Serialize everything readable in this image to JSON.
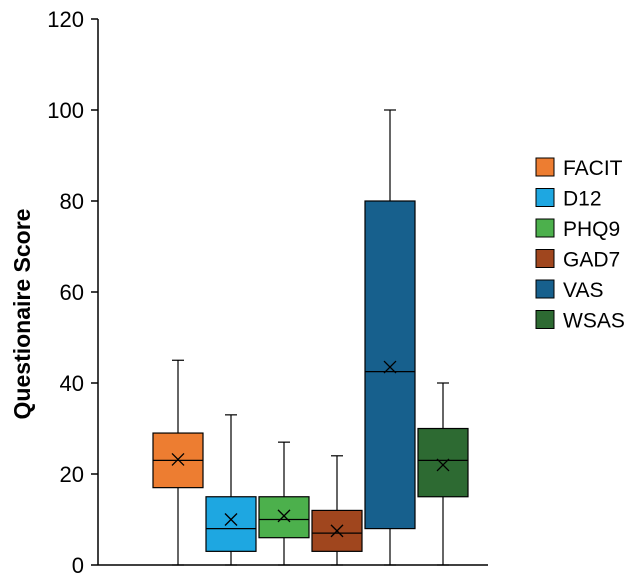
{
  "chart_data": {
    "type": "boxplot",
    "title": "",
    "xlabel": "",
    "ylabel": "Questionaire Score",
    "ylim": [
      0,
      120
    ],
    "yticks": [
      0,
      20,
      40,
      60,
      80,
      100,
      120
    ],
    "legend_position": "right",
    "series": [
      {
        "name": "FACIT",
        "color": "#ED7D31",
        "min": 0,
        "q1": 17,
        "median": 23,
        "q3": 29,
        "max": 45,
        "mean": 23.2
      },
      {
        "name": "D12",
        "color": "#1EA7E1",
        "min": 0,
        "q1": 3,
        "median": 8,
        "q3": 15,
        "max": 33,
        "mean": 10
      },
      {
        "name": "PHQ9",
        "color": "#4CB04C",
        "min": 0,
        "q1": 6,
        "median": 10,
        "q3": 15,
        "max": 27,
        "mean": 10.8
      },
      {
        "name": "GAD7",
        "color": "#A0461E",
        "min": 0,
        "q1": 3,
        "median": 7,
        "q3": 12,
        "max": 24,
        "mean": 7.5
      },
      {
        "name": "VAS",
        "color": "#17608D",
        "min": 0,
        "q1": 8,
        "median": 42.5,
        "q3": 80,
        "max": 100,
        "mean": 43.5
      },
      {
        "name": "WSAS",
        "color": "#2D6A32",
        "min": 0,
        "q1": 15,
        "median": 23,
        "q3": 30,
        "max": 40,
        "mean": 22
      }
    ]
  }
}
